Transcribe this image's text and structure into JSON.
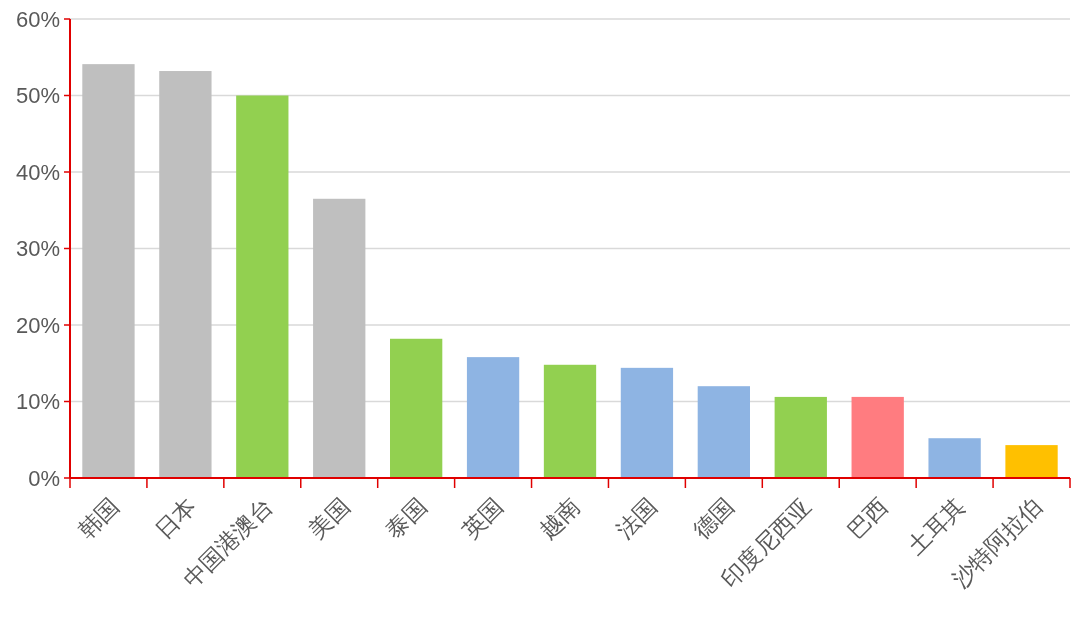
{
  "chart_data": {
    "type": "bar",
    "categories": [
      "韩国",
      "日本",
      "中国港澳台",
      "美国",
      "泰国",
      "英国",
      "越南",
      "法国",
      "德国",
      "印度尼西亚",
      "巴西",
      "土耳其",
      "沙特阿拉伯"
    ],
    "values": [
      54.1,
      53.2,
      50,
      36.5,
      18.2,
      15.8,
      14.8,
      14.4,
      12,
      10.6,
      10.6,
      5.2,
      4.3
    ],
    "colors": [
      "#bfbfbf",
      "#bfbfbf",
      "#92d050",
      "#bfbfbf",
      "#92d050",
      "#8eb4e3",
      "#92d050",
      "#8eb4e3",
      "#8eb4e3",
      "#92d050",
      "#ff7c80",
      "#8eb4e3",
      "#ffc000"
    ],
    "ylim": [
      0,
      60
    ],
    "yticks": [
      {
        "value": 0,
        "label": "0%"
      },
      {
        "value": 10,
        "label": "10%"
      },
      {
        "value": 20,
        "label": "20%"
      },
      {
        "value": 30,
        "label": "30%"
      },
      {
        "value": 40,
        "label": "40%"
      },
      {
        "value": 50,
        "label": "50%"
      },
      {
        "value": 60,
        "label": "60%"
      }
    ],
    "grid": "y"
  }
}
